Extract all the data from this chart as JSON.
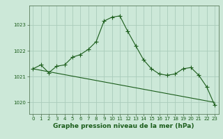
{
  "title": "Graphe pression niveau de la mer (hPa)",
  "background_color": "#cce8d8",
  "grid_color": "#aaccbb",
  "line_color": "#1a5c1a",
  "xlim": [
    -0.5,
    23.5
  ],
  "ylim": [
    1019.55,
    1023.75
  ],
  "yticks": [
    1020,
    1021,
    1022,
    1023
  ],
  "xticks": [
    0,
    1,
    2,
    3,
    4,
    5,
    6,
    7,
    8,
    9,
    10,
    11,
    12,
    13,
    14,
    15,
    16,
    17,
    18,
    19,
    20,
    21,
    22,
    23
  ],
  "main_x": [
    0,
    1,
    2,
    3,
    4,
    5,
    6,
    7,
    8,
    9,
    10,
    11,
    12,
    13,
    14,
    15,
    16,
    17,
    18,
    19,
    20,
    21,
    22,
    23
  ],
  "main_y": [
    1021.3,
    1021.45,
    1021.15,
    1021.4,
    1021.45,
    1021.75,
    1021.85,
    1022.05,
    1022.35,
    1023.15,
    1023.3,
    1023.35,
    1022.75,
    1022.2,
    1021.65,
    1021.3,
    1021.1,
    1021.05,
    1021.1,
    1021.3,
    1021.35,
    1021.05,
    1020.6,
    1019.9
  ],
  "trend_x": [
    0,
    23
  ],
  "trend_y": [
    1021.3,
    1020.0
  ],
  "title_fontsize": 6.5,
  "tick_fontsize": 5.0,
  "marker_style": "+",
  "marker_size": 4.0,
  "line_width": 0.8
}
